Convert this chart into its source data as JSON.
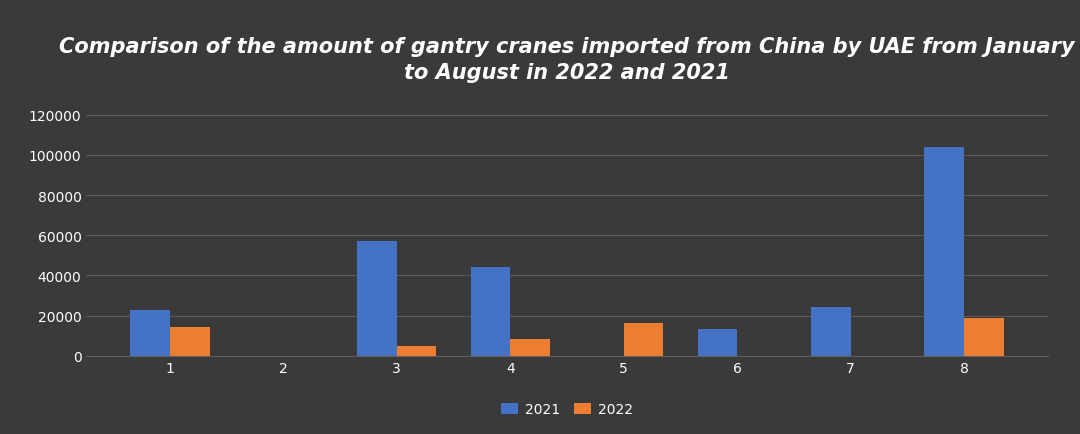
{
  "title": "Comparison of the amount of gantry cranes imported from China by UAE from January\nto August in 2022 and 2021",
  "categories": [
    1,
    2,
    3,
    4,
    5,
    6,
    7,
    8
  ],
  "values_2021": [
    23000,
    0,
    57000,
    44000,
    0,
    13500,
    24500,
    104000
  ],
  "values_2022": [
    14500,
    0,
    5000,
    8500,
    16500,
    0,
    0,
    19000
  ],
  "color_2021": "#4472C4",
  "color_2022": "#ED7D31",
  "background_color": "#3a3a3a",
  "text_color": "#ffffff",
  "grid_color": "#606060",
  "ylim": [
    0,
    130000
  ],
  "yticks": [
    0,
    20000,
    40000,
    60000,
    80000,
    100000,
    120000
  ],
  "legend_labels": [
    "2021",
    "2022"
  ],
  "title_fontsize": 15,
  "tick_fontsize": 10,
  "legend_fontsize": 10,
  "bar_width": 0.35
}
